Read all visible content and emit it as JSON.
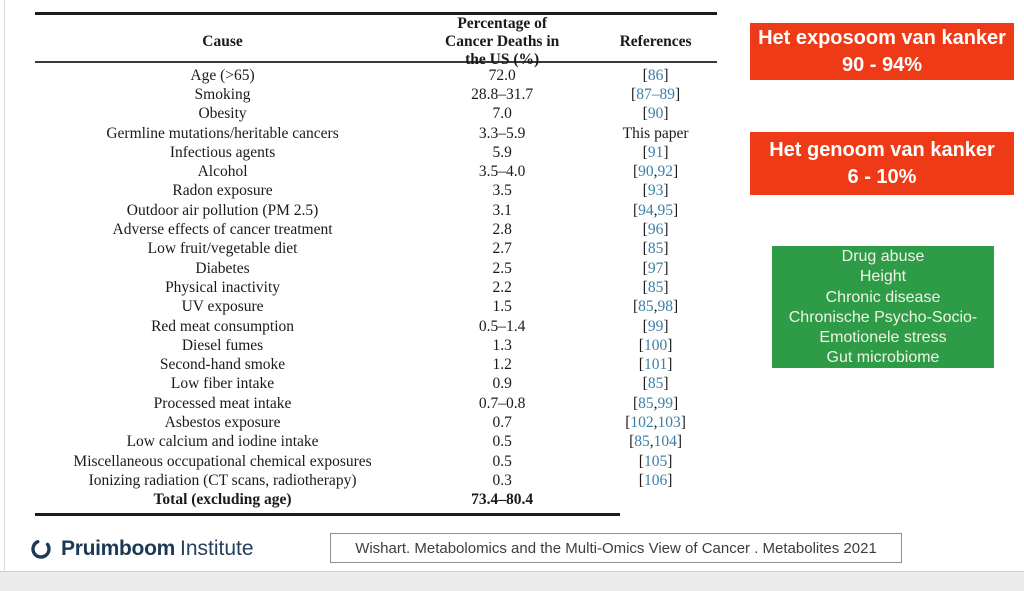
{
  "table": {
    "headers": {
      "cause": "Cause",
      "pct": "Percentage of Cancer Deaths in the US (%)",
      "refs": "References"
    },
    "rows": [
      {
        "cause": "Age (>65)",
        "pct": "72.0",
        "ref": "[86]"
      },
      {
        "cause": "Smoking",
        "pct": "28.8–31.7",
        "ref": "[87–89]"
      },
      {
        "cause": "Obesity",
        "pct": "7.0",
        "ref": "[90]"
      },
      {
        "cause": "Germline mutations/heritable cancers",
        "pct": "3.3–5.9",
        "ref": "This paper"
      },
      {
        "cause": "Infectious agents",
        "pct": "5.9",
        "ref": "[91]"
      },
      {
        "cause": "Alcohol",
        "pct": "3.5–4.0",
        "ref": "[90,92]"
      },
      {
        "cause": "Radon exposure",
        "pct": "3.5",
        "ref": "[93]"
      },
      {
        "cause": "Outdoor air pollution (PM 2.5)",
        "pct": "3.1",
        "ref": "[94,95]"
      },
      {
        "cause": "Adverse effects of cancer treatment",
        "pct": "2.8",
        "ref": "[96]"
      },
      {
        "cause": "Low fruit/vegetable diet",
        "pct": "2.7",
        "ref": "[85]"
      },
      {
        "cause": "Diabetes",
        "pct": "2.5",
        "ref": "[97]"
      },
      {
        "cause": "Physical inactivity",
        "pct": "2.2",
        "ref": "[85]"
      },
      {
        "cause": "UV exposure",
        "pct": "1.5",
        "ref": "[85,98]"
      },
      {
        "cause": "Red meat consumption",
        "pct": "0.5–1.4",
        "ref": "[99]"
      },
      {
        "cause": "Diesel fumes",
        "pct": "1.3",
        "ref": "[100]"
      },
      {
        "cause": "Second-hand smoke",
        "pct": "1.2",
        "ref": "[101]"
      },
      {
        "cause": "Low fiber intake",
        "pct": "0.9",
        "ref": "[85]"
      },
      {
        "cause": "Processed meat intake",
        "pct": "0.7–0.8",
        "ref": "[85,99]"
      },
      {
        "cause": "Asbestos exposure",
        "pct": "0.7",
        "ref": "[102,103]"
      },
      {
        "cause": "Low calcium and iodine intake",
        "pct": "0.5",
        "ref": "[85,104]"
      },
      {
        "cause": "Miscellaneous occupational chemical exposures",
        "pct": "0.5",
        "ref": "[105]"
      },
      {
        "cause": "Ionizing radiation (CT scans, radiotherapy)",
        "pct": "0.3",
        "ref": "[106]"
      },
      {
        "cause": "Total (excluding age)",
        "pct": "73.4–80.4",
        "ref": "",
        "bold": true
      }
    ]
  },
  "callouts": {
    "exposome": {
      "line1": "Het exposoom van kanker",
      "line2": "90 - 94%",
      "bg": "#ee3a17"
    },
    "genome": {
      "line1": "Het genoom van kanker",
      "line2": "6 - 10%",
      "bg": "#ee3a17"
    },
    "other_factors": {
      "bg": "#2e9c47",
      "lines": [
        "Drug abuse",
        "Height",
        "Chronic disease",
        "Chronische Psycho-Socio-",
        "Emotionele stress",
        "Gut microbiome"
      ]
    }
  },
  "footer": {
    "logo_bold": "Pruimboom",
    "logo_light": "Institute",
    "citation": "Wishart. Metabolomics and the Multi-Omics View of Cancer . Metabolites 2021"
  },
  "colors": {
    "reference_link": "#3b7fa7",
    "callout_red": "#ee3a17",
    "callout_green": "#2e9c47",
    "logo_navy": "#1c3a55"
  }
}
